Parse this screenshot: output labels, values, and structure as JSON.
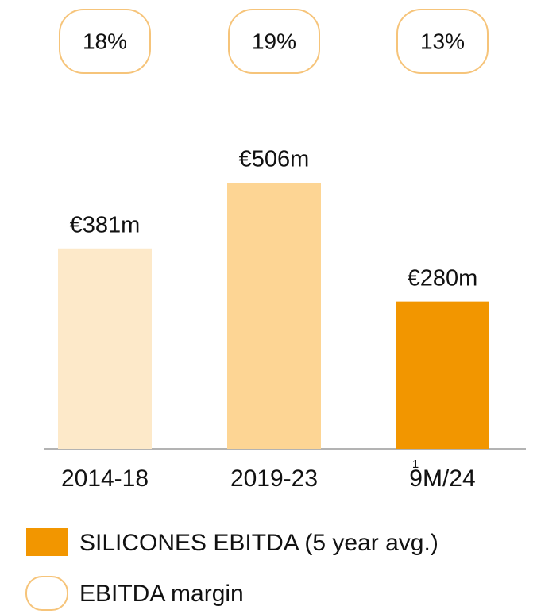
{
  "chart_data": {
    "type": "bar",
    "categories": [
      "2014-18",
      "2019-23",
      "9M/24"
    ],
    "category_notes": [
      null,
      null,
      "1"
    ],
    "series": [
      {
        "name": "SILICONES EBITDA (5 year avg.)",
        "color": "#f29600",
        "bar_colors": [
          "#fde9c9",
          "#fdd594",
          "#f29600"
        ],
        "values": [
          381,
          506,
          280
        ],
        "value_labels": [
          "€381m",
          "€506m",
          "€280m"
        ]
      }
    ],
    "margins": {
      "name": "EBITDA margin",
      "color": "#f6c47a",
      "values": [
        18,
        19,
        13
      ],
      "value_labels": [
        "18%",
        "19%",
        "13%"
      ]
    }
  }
}
